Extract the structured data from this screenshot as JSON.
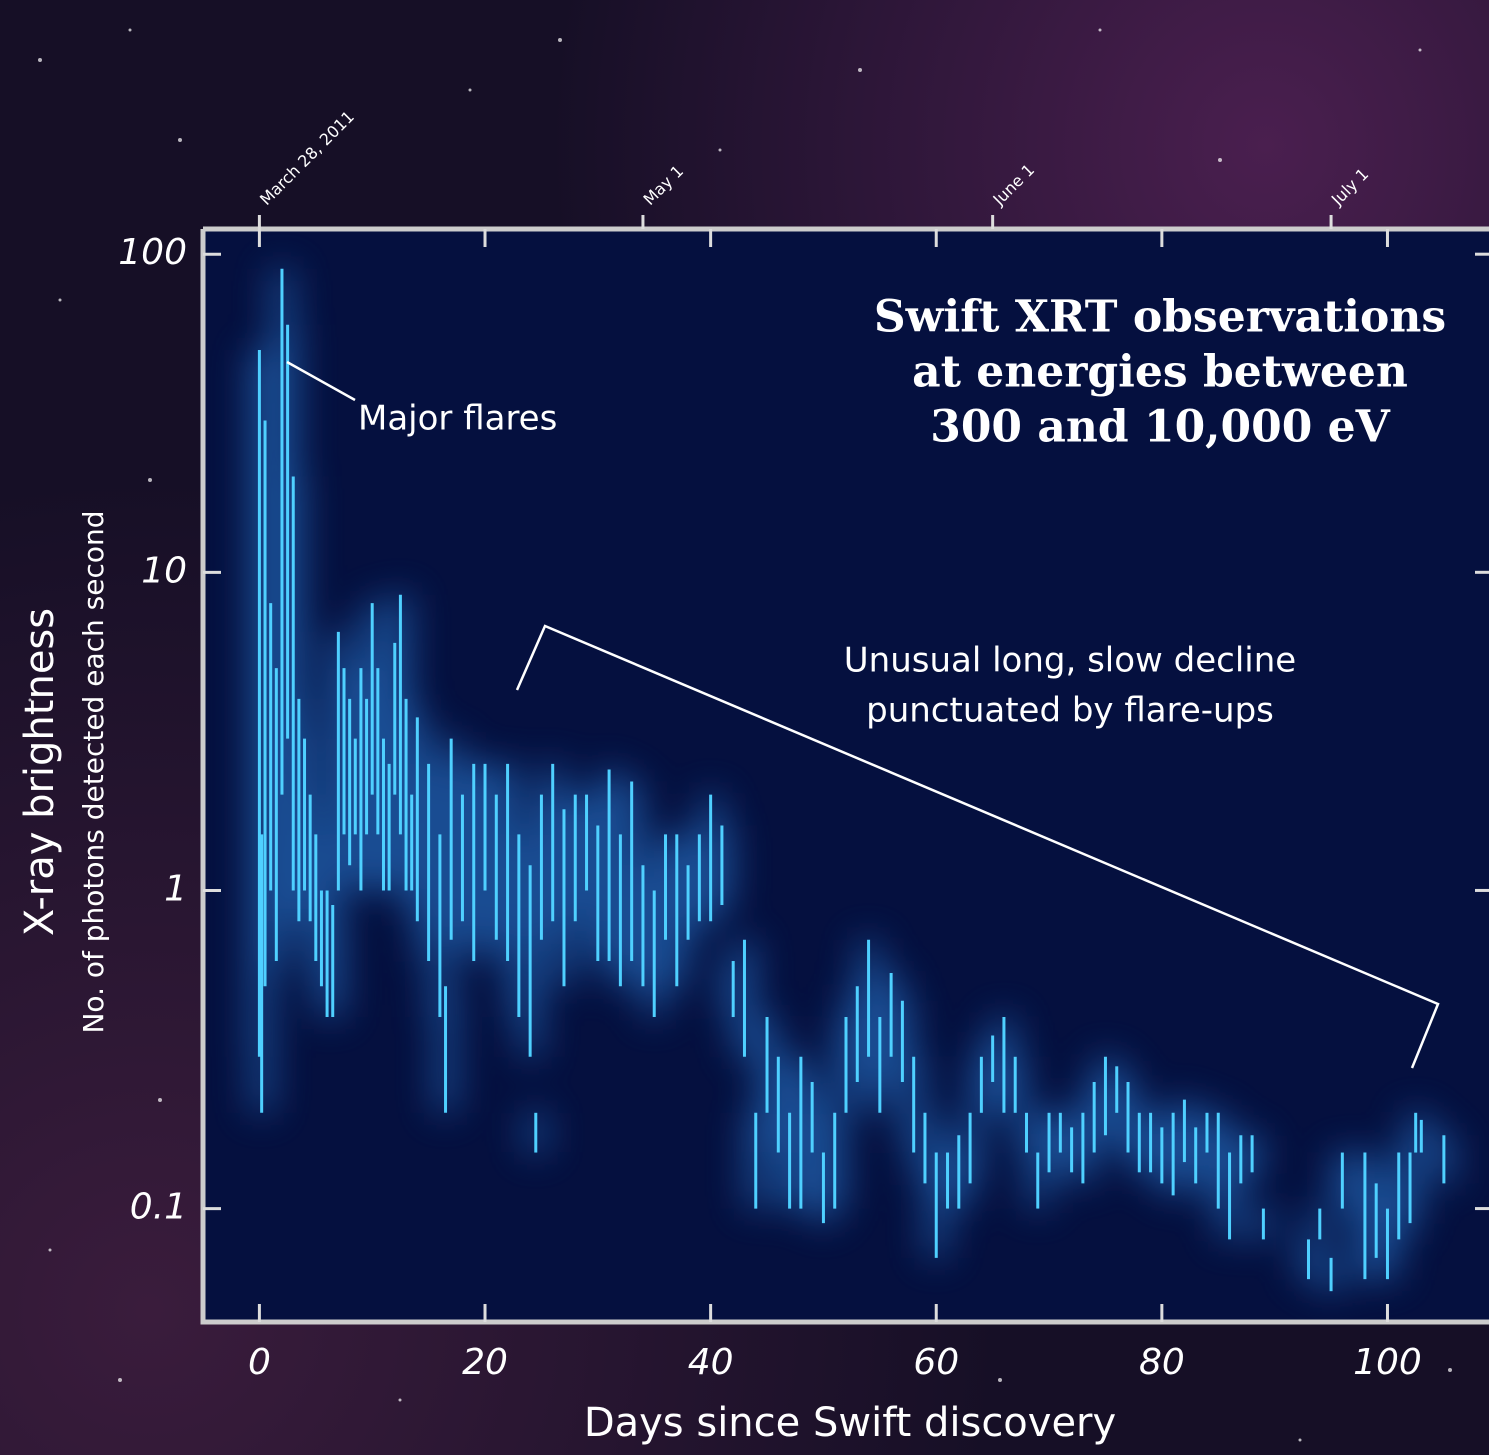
{
  "chart_data": {
    "type": "errorbar",
    "title": [
      "Swift XRT observations",
      "at energies between",
      "300 and 10,000 eV"
    ],
    "ylabel": "X-ray brightness",
    "ylabel_sub": "No. of photons detected each second",
    "xlabel": "Days since Swift discovery",
    "annotations": [
      "Major flares",
      "Unusual long, slow decline",
      "punctuated by flare-ups"
    ],
    "color": "#4fd0ff",
    "yscale": "log",
    "xlim": [
      -5,
      109
    ],
    "ylim": [
      0.044,
      120
    ],
    "xticks": [
      0,
      20,
      40,
      60,
      80,
      100
    ],
    "yticks": [
      100,
      10,
      1,
      0.1
    ],
    "x2ticks": [
      {
        "value": 0,
        "label": "March 28, 2011"
      },
      {
        "value": 34,
        "label": "May 1"
      },
      {
        "value": 65,
        "label": "June 1"
      },
      {
        "value": 95,
        "label": "July 1"
      }
    ],
    "x": [
      0,
      0.2,
      0.5,
      1,
      1.5,
      2,
      2.5,
      3,
      3.5,
      4,
      4.5,
      5,
      5.5,
      6,
      6.5,
      7,
      7.5,
      8,
      8.5,
      9,
      9.5,
      10,
      10.5,
      11,
      11.5,
      12,
      12.5,
      13,
      13.5,
      14,
      15,
      16,
      16.5,
      17,
      18,
      19,
      20,
      21,
      22,
      23,
      24,
      24.5,
      25,
      26,
      27,
      28,
      29,
      30,
      31,
      32,
      33,
      34,
      35,
      36,
      37,
      38,
      39,
      40,
      41,
      42,
      43,
      44,
      45,
      46,
      47,
      48,
      49,
      50,
      51,
      52,
      53,
      54,
      55,
      56,
      57,
      58,
      59,
      60,
      61,
      62,
      63,
      64,
      65,
      66,
      67,
      68,
      69,
      70,
      71,
      72,
      73,
      74,
      75,
      76,
      77,
      78,
      79,
      80,
      81,
      82,
      83,
      84,
      85,
      86,
      87,
      88,
      89,
      93,
      94,
      95,
      96,
      98,
      99,
      100,
      101,
      102,
      102.5,
      103,
      105
    ],
    "low": [
      0.3,
      0.2,
      0.5,
      1,
      0.6,
      2,
      3,
      1,
      0.8,
      1,
      0.8,
      0.6,
      0.5,
      0.4,
      0.4,
      1,
      1.5,
      1.2,
      1.5,
      1,
      1.5,
      2,
      1.5,
      1,
      1,
      2,
      1.5,
      1,
      1,
      0.8,
      0.6,
      0.4,
      0.2,
      0.7,
      0.8,
      0.6,
      1,
      0.7,
      0.6,
      0.4,
      0.3,
      0.15,
      0.7,
      0.8,
      0.5,
      0.8,
      1,
      0.6,
      0.6,
      0.5,
      0.6,
      0.5,
      0.4,
      0.7,
      0.5,
      0.7,
      0.8,
      0.8,
      0.9,
      0.4,
      0.3,
      0.1,
      0.2,
      0.15,
      0.1,
      0.1,
      0.15,
      0.09,
      0.1,
      0.2,
      0.25,
      0.3,
      0.2,
      0.3,
      0.25,
      0.15,
      0.12,
      0.07,
      0.1,
      0.1,
      0.12,
      0.2,
      0.25,
      0.2,
      0.2,
      0.15,
      0.1,
      0.13,
      0.15,
      0.13,
      0.12,
      0.15,
      0.17,
      0.2,
      0.15,
      0.13,
      0.13,
      0.12,
      0.11,
      0.14,
      0.12,
      0.15,
      0.1,
      0.08,
      0.12,
      0.13,
      0.08,
      0.06,
      0.08,
      0.055,
      0.1,
      0.06,
      0.07,
      0.06,
      0.08,
      0.09,
      0.15,
      0.15,
      0.12
    ],
    "high": [
      50,
      1.5,
      30,
      8,
      5,
      90,
      60,
      20,
      4,
      3,
      2,
      1.5,
      1,
      1,
      0.9,
      6.5,
      5,
      4,
      3,
      5,
      4,
      8,
      5,
      3,
      2.5,
      6,
      8.5,
      4,
      2,
      3.5,
      2.5,
      1.5,
      0.5,
      3,
      2,
      2.5,
      2.5,
      2,
      2.5,
      1.5,
      1.2,
      0.2,
      2,
      2.5,
      1.8,
      2,
      2,
      1.6,
      2.4,
      1.5,
      2.2,
      1.2,
      1,
      1.5,
      1.5,
      1.2,
      1.5,
      2,
      1.6,
      0.6,
      0.7,
      0.2,
      0.4,
      0.3,
      0.2,
      0.3,
      0.25,
      0.15,
      0.2,
      0.4,
      0.5,
      0.7,
      0.4,
      0.55,
      0.45,
      0.3,
      0.2,
      0.15,
      0.15,
      0.17,
      0.2,
      0.3,
      0.35,
      0.4,
      0.3,
      0.2,
      0.15,
      0.2,
      0.2,
      0.18,
      0.2,
      0.25,
      0.3,
      0.28,
      0.25,
      0.2,
      0.2,
      0.18,
      0.2,
      0.22,
      0.18,
      0.2,
      0.2,
      0.15,
      0.17,
      0.17,
      0.1,
      0.08,
      0.1,
      0.07,
      0.15,
      0.15,
      0.12,
      0.1,
      0.15,
      0.15,
      0.2,
      0.19,
      0.17
    ]
  }
}
